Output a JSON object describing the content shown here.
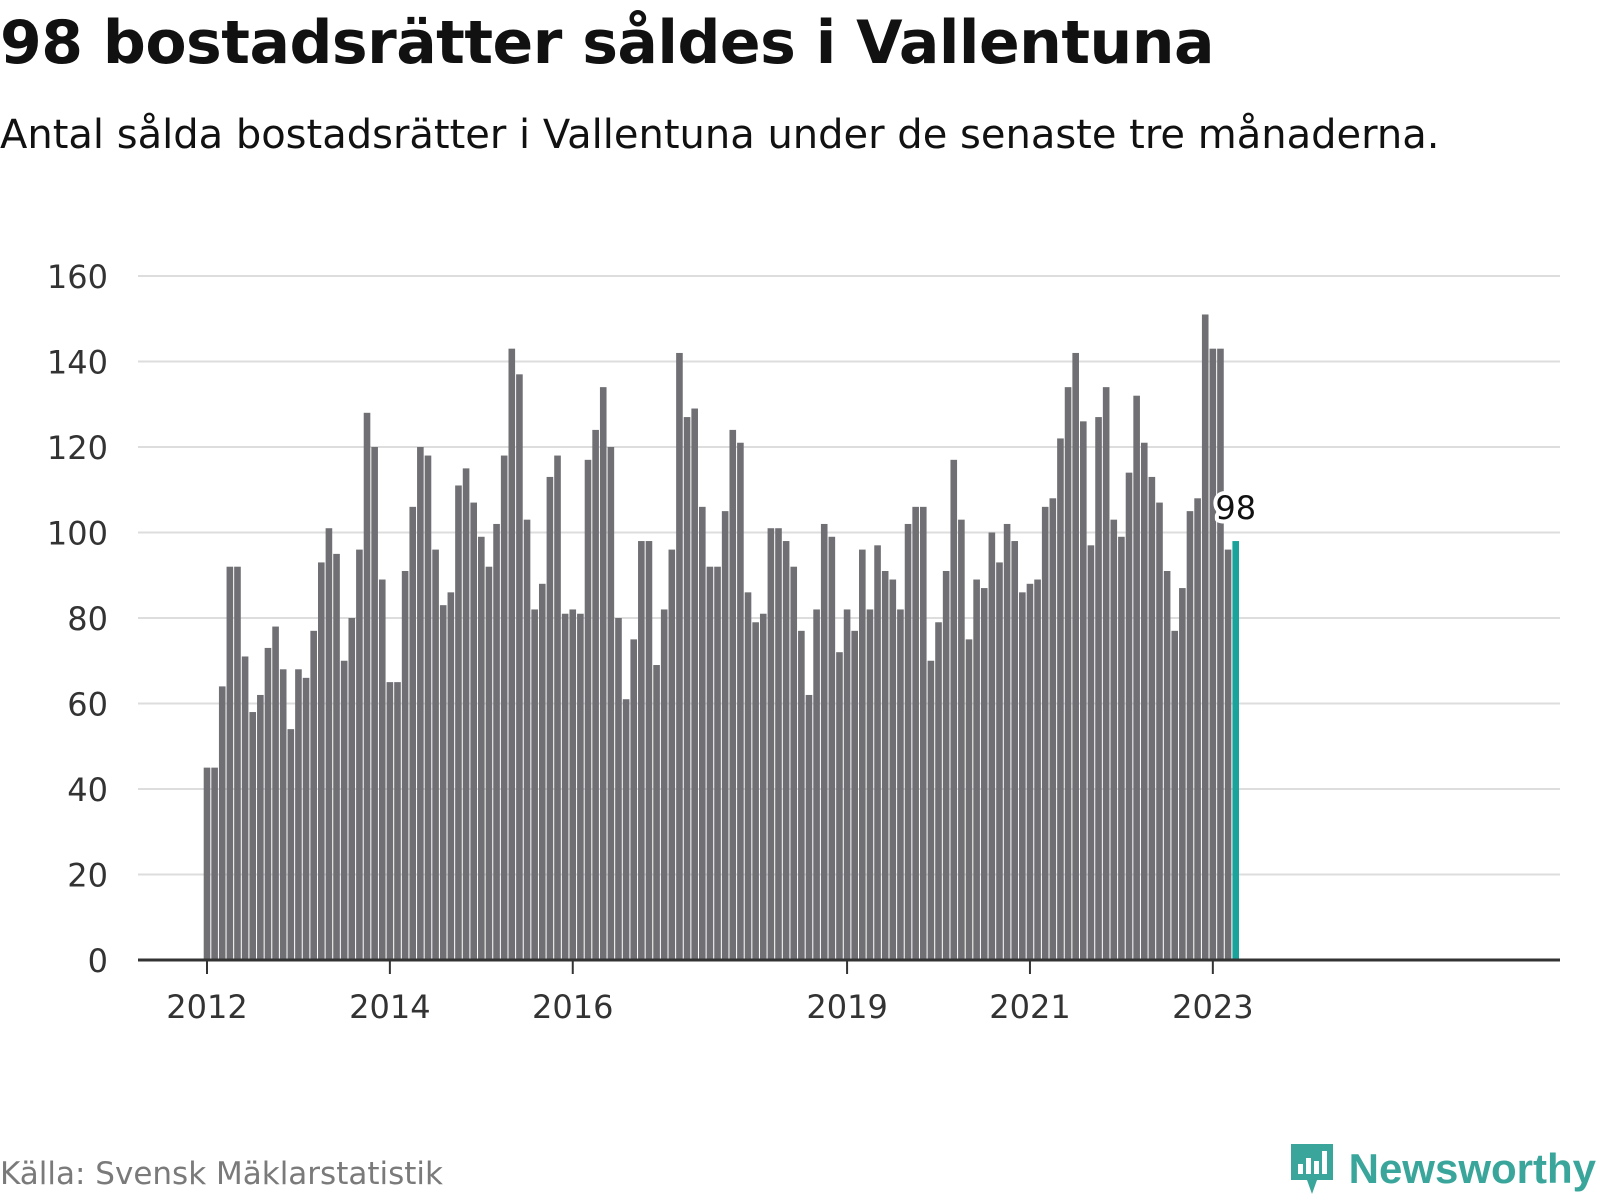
{
  "header": {
    "title": "98 bostadsrätter såldes i Vallentuna",
    "subtitle": "Antal sålda bostadsrätter i Vallentuna under de senaste tre månaderna."
  },
  "footer": {
    "source": "Källa: Svensk Mäklarstatistik",
    "brand": "Newsworthy"
  },
  "colors": {
    "bar": "#6f6f74",
    "highlight": "#1aa39a",
    "grid": "#dddddd",
    "axis": "#333333",
    "brand": "#3aa69b"
  },
  "chart_data": {
    "type": "bar",
    "title": "98 bostadsrätter såldes i Vallentuna",
    "subtitle": "Antal sålda bostadsrätter i Vallentuna under de senaste tre månaderna.",
    "xlabel": "",
    "ylabel": "",
    "ylim": [
      0,
      160
    ],
    "yticks": [
      "0",
      "20",
      "40",
      "60",
      "80",
      "100",
      "120",
      "140",
      "160"
    ],
    "grid": true,
    "x_start": "2012-01",
    "frequency": "monthly",
    "xticks": [
      {
        "label": "2012",
        "index": 0
      },
      {
        "label": "2014",
        "index": 24
      },
      {
        "label": "2016",
        "index": 48
      },
      {
        "label": "2019",
        "index": 84
      },
      {
        "label": "2021",
        "index": 108
      },
      {
        "label": "2023",
        "index": 132
      }
    ],
    "values": [
      45,
      45,
      64,
      92,
      92,
      71,
      58,
      62,
      73,
      78,
      68,
      54,
      68,
      66,
      77,
      93,
      101,
      95,
      70,
      80,
      96,
      128,
      120,
      89,
      65,
      65,
      91,
      106,
      120,
      118,
      96,
      83,
      86,
      111,
      115,
      107,
      99,
      92,
      102,
      118,
      143,
      137,
      103,
      82,
      88,
      113,
      118,
      81,
      82,
      81,
      117,
      124,
      134,
      120,
      80,
      61,
      75,
      98,
      98,
      69,
      82,
      96,
      142,
      127,
      129,
      106,
      92,
      92,
      105,
      124,
      121,
      86,
      79,
      81,
      101,
      101,
      98,
      92,
      77,
      62,
      82,
      102,
      99,
      72,
      82,
      77,
      96,
      82,
      97,
      91,
      89,
      82,
      102,
      106,
      106,
      70,
      79,
      91,
      117,
      103,
      75,
      89,
      87,
      100,
      93,
      102,
      98,
      86,
      88,
      89,
      106,
      108,
      122,
      134,
      142,
      126,
      97,
      127,
      134,
      103,
      99,
      114,
      132,
      121,
      113,
      107,
      91,
      77,
      87,
      105,
      108,
      151,
      143,
      143,
      96,
      98
    ],
    "highlight_index": 135,
    "annotation": "98"
  }
}
